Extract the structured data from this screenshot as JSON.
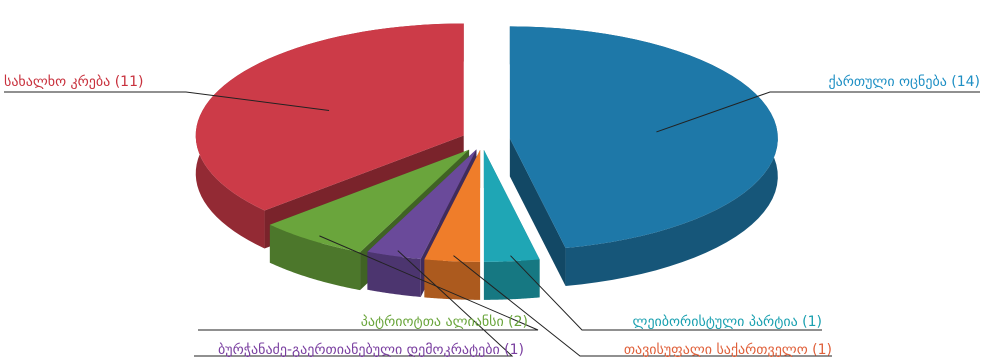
{
  "chart_data": {
    "type": "pie",
    "style": "3d-exploded",
    "title": "",
    "slices": [
      {
        "label": "ქართული ოცნება (14)",
        "value": 14,
        "color": "#1e78a8",
        "label_color": "#1e8fc4"
      },
      {
        "label": "ლეიბორისტული პარტია (1)",
        "value": 1,
        "color": "#1fa6b5",
        "label_color": "#1aa0b0"
      },
      {
        "label": "თავისუფალი საქართველო (1)",
        "value": 1,
        "color": "#ef7d2a",
        "label_color": "#e0603a"
      },
      {
        "label": "ბურჭანაძე-გაერთიანებული დემოკრატები (1)",
        "value": 1,
        "color": "#6a4a9a",
        "label_color": "#7a3fa0"
      },
      {
        "label": "პატრიოტთა ალიანსი (2)",
        "value": 2,
        "color": "#6aa53c",
        "label_color": "#6aa53c"
      },
      {
        "label": "სახალხო კრება (11)",
        "value": 11,
        "color": "#cc3b48",
        "label_color": "#c8313d"
      }
    ]
  }
}
